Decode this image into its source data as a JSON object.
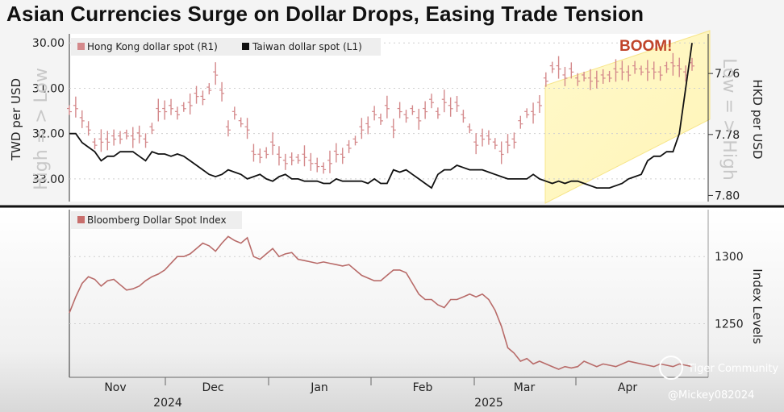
{
  "title": "Asian Currencies Surge on Dollar Drops, Easing Trade Tension",
  "chart_data": [
    {
      "type": "line",
      "panel": "top",
      "legend": [
        "Hong Kong dollar spot (R1)",
        "Taiwan dollar spot (L1)"
      ],
      "ylabel_left": "TWD per USD",
      "ylabel_right": "HKD per USD",
      "left_ticks": [
        "30.00",
        "31.00",
        "32.00",
        "33.00"
      ],
      "right_ticks": [
        "7.76",
        "7.78",
        "7.80"
      ],
      "left_ylim": [
        33.5,
        29.8
      ],
      "right_ylim": [
        7.802,
        7.747
      ],
      "left_axis_note_top": "High = > Low",
      "left_axis_note_bottom": "",
      "right_axis_note": "Low = > High",
      "annotation": "BOOM!",
      "series": [
        {
          "name": "Taiwan dollar spot",
          "axis": "left",
          "color": "#111111",
          "x": [
            0,
            4,
            8,
            12,
            16,
            20,
            24,
            28,
            32,
            36,
            40,
            44,
            48,
            52,
            56,
            60,
            64,
            68,
            72,
            76,
            80,
            84,
            88,
            92,
            96,
            100,
            104,
            108,
            112,
            116,
            120,
            124,
            128,
            132,
            136,
            140,
            144,
            148,
            152,
            156,
            160,
            164,
            168,
            172,
            176,
            180,
            184,
            188,
            192,
            196,
            200,
            204,
            208,
            212,
            216,
            220,
            224,
            228,
            232,
            236,
            240,
            244,
            248,
            252,
            256,
            260,
            264,
            268,
            272,
            276,
            280,
            284,
            288,
            292,
            296,
            300,
            304,
            308,
            312,
            316,
            320,
            324,
            328,
            332,
            336,
            340,
            344,
            348,
            352,
            356,
            360,
            364,
            368,
            372,
            376,
            380,
            384,
            388,
            392
          ],
          "values": [
            32.0,
            32.0,
            32.2,
            32.3,
            32.4,
            32.6,
            32.5,
            32.5,
            32.4,
            32.4,
            32.4,
            32.5,
            32.6,
            32.4,
            32.45,
            32.45,
            32.5,
            32.45,
            32.5,
            32.6,
            32.7,
            32.8,
            32.9,
            32.95,
            32.9,
            32.8,
            32.85,
            32.9,
            33.0,
            32.95,
            32.9,
            33.0,
            33.05,
            32.95,
            32.9,
            33.0,
            33.0,
            33.05,
            33.05,
            33.05,
            33.1,
            33.1,
            33.0,
            33.05,
            33.05,
            33.05,
            33.05,
            33.1,
            33.0,
            33.1,
            33.1,
            32.8,
            32.85,
            32.8,
            32.9,
            33.0,
            33.1,
            33.2,
            32.9,
            32.8,
            32.8,
            32.7,
            32.75,
            32.8,
            32.8,
            32.8,
            32.85,
            32.9,
            32.95,
            33.0,
            33.0,
            33.0,
            33.0,
            32.9,
            33.0,
            33.05,
            33.1,
            33.05,
            33.1,
            33.05,
            33.05,
            33.1,
            33.15,
            33.2,
            33.2,
            33.2,
            33.15,
            33.1,
            33.0,
            32.95,
            32.9,
            32.6,
            32.5,
            32.5,
            32.4,
            32.4,
            32.0,
            31.0,
            30.0
          ]
        },
        {
          "name": "Hong Kong dollar spot",
          "axis": "right",
          "color": "#d4898b",
          "note": "daily high-low bars",
          "x": [
            0,
            4,
            8,
            12,
            16,
            20,
            24,
            28,
            32,
            36,
            40,
            44,
            48,
            52,
            56,
            60,
            64,
            68,
            72,
            76,
            80,
            84,
            88,
            92,
            96,
            100,
            104,
            108,
            112,
            116,
            120,
            124,
            128,
            132,
            136,
            140,
            144,
            148,
            152,
            156,
            160,
            164,
            168,
            172,
            176,
            180,
            184,
            188,
            192,
            196,
            200,
            204,
            208,
            212,
            216,
            220,
            224,
            228,
            232,
            236,
            240,
            244,
            248,
            252,
            256,
            260,
            264,
            268,
            272,
            276,
            280,
            284,
            288,
            292,
            296,
            300,
            304,
            308,
            312,
            316,
            320,
            324,
            328,
            332,
            336,
            340,
            344,
            348,
            352,
            356,
            360,
            364,
            368,
            372,
            376,
            380,
            384,
            388,
            392
          ],
          "values": [
            7.772,
            7.771,
            7.775,
            7.778,
            7.783,
            7.782,
            7.782,
            7.781,
            7.781,
            7.78,
            7.781,
            7.78,
            7.782,
            7.778,
            7.772,
            7.772,
            7.771,
            7.773,
            7.771,
            7.77,
            7.767,
            7.768,
            7.765,
            7.76,
            7.766,
            7.778,
            7.773,
            7.776,
            7.778,
            7.786,
            7.787,
            7.786,
            7.783,
            7.787,
            7.789,
            7.788,
            7.788,
            7.787,
            7.789,
            7.79,
            7.791,
            7.789,
            7.786,
            7.787,
            7.784,
            7.782,
            7.778,
            7.777,
            7.773,
            7.775,
            7.771,
            7.778,
            7.772,
            7.774,
            7.772,
            7.775,
            7.772,
            7.769,
            7.773,
            7.769,
            7.771,
            7.77,
            7.774,
            7.778,
            7.783,
            7.781,
            7.781,
            7.783,
            7.786,
            7.783,
            7.782,
            7.776,
            7.773,
            7.773,
            7.77,
            7.762,
            7.758,
            7.758,
            7.761,
            7.759,
            7.762,
            7.761,
            7.762,
            7.762,
            7.761,
            7.761,
            7.759,
            7.759,
            7.76,
            7.758,
            7.759,
            7.759,
            7.759,
            7.76,
            7.758,
            7.757,
            7.758,
            7.76,
            7.757
          ]
        }
      ]
    },
    {
      "type": "line",
      "panel": "bottom",
      "legend": [
        "Bloomberg Dollar Spot Index"
      ],
      "ylabel_right": "Index Levels",
      "right_ticks": [
        "1300",
        "1250"
      ],
      "ylim": [
        1210,
        1335
      ],
      "series": [
        {
          "name": "Bloomberg Dollar Spot Index",
          "color": "#b86b69",
          "x": [
            0,
            4,
            8,
            12,
            16,
            20,
            24,
            28,
            32,
            36,
            40,
            44,
            48,
            52,
            56,
            60,
            64,
            68,
            72,
            76,
            80,
            84,
            88,
            92,
            96,
            100,
            104,
            108,
            112,
            116,
            120,
            124,
            128,
            132,
            136,
            140,
            144,
            148,
            152,
            156,
            160,
            164,
            168,
            172,
            176,
            180,
            184,
            188,
            192,
            196,
            200,
            204,
            208,
            212,
            216,
            220,
            224,
            228,
            232,
            236,
            240,
            244,
            248,
            252,
            256,
            260,
            264,
            268,
            272,
            276,
            280,
            284,
            288,
            292,
            296,
            300,
            304,
            308,
            312,
            316,
            320,
            324,
            328,
            332,
            336,
            340,
            344,
            348,
            352,
            356,
            360,
            364,
            368,
            372,
            376,
            380,
            384,
            388,
            392
          ],
          "values": [
            1258,
            1270,
            1280,
            1285,
            1283,
            1278,
            1282,
            1283,
            1279,
            1275,
            1276,
            1278,
            1282,
            1285,
            1287,
            1290,
            1295,
            1300,
            1300,
            1302,
            1306,
            1310,
            1308,
            1304,
            1310,
            1315,
            1312,
            1310,
            1314,
            1300,
            1298,
            1302,
            1306,
            1300,
            1302,
            1303,
            1298,
            1297,
            1296,
            1295,
            1296,
            1295,
            1294,
            1293,
            1294,
            1290,
            1286,
            1284,
            1282,
            1282,
            1286,
            1290,
            1290,
            1288,
            1280,
            1272,
            1268,
            1268,
            1264,
            1262,
            1268,
            1268,
            1270,
            1272,
            1270,
            1272,
            1268,
            1260,
            1248,
            1232,
            1228,
            1222,
            1224,
            1220,
            1222,
            1220,
            1218,
            1216,
            1218,
            1217,
            1218,
            1222,
            1220,
            1218,
            1220,
            1219,
            1218,
            1220,
            1222,
            1221,
            1220,
            1219,
            1218,
            1220,
            1219,
            1218,
            1220,
            1219,
            1218
          ]
        }
      ]
    },
    {
      "type": "line",
      "panel": "x-axis",
      "months": [
        "Nov",
        "Dec",
        "Jan",
        "Feb",
        "Mar",
        "Apr"
      ],
      "years": [
        "2024",
        "2025"
      ]
    }
  ],
  "watermark": {
    "brand": "Tiger Community",
    "handle": "@Mickey082024"
  }
}
